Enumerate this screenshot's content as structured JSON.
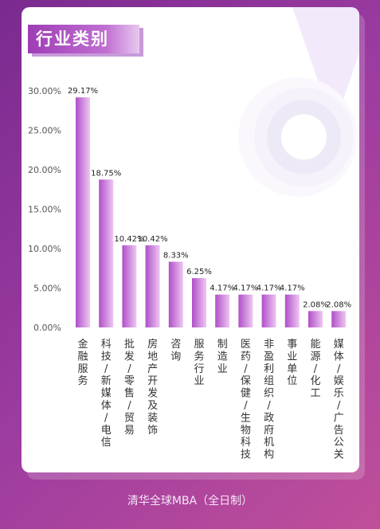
{
  "title": "行业类别",
  "footer": "清华全球MBA（全日制）",
  "colors": {
    "bar_dark": "#b04fc8",
    "bar_light": "#eec7f3",
    "title_dark": "#9e3db5",
    "title_light": "#e7c8ef"
  },
  "chart_data": {
    "type": "bar",
    "categories": [
      "金融服务",
      "科技/新媒体/电信",
      "批发/零售/贸易",
      "房地产开发及装饰",
      "咨询",
      "服务行业",
      "制造业",
      "医药/保健/生物科技",
      "非盈利组织/政府机构",
      "事业单位",
      "能源/化工",
      "媒体/娱乐/广告公关"
    ],
    "values": [
      29.17,
      18.75,
      10.42,
      10.42,
      8.33,
      6.25,
      4.17,
      4.17,
      4.17,
      4.17,
      2.08,
      2.08
    ],
    "value_labels": [
      "29.17%",
      "18.75%",
      "10.42%",
      "10.42%",
      "8.33%",
      "6.25%",
      "4.17%",
      "4.17%",
      "4.17%",
      "4.17%",
      "2.08%",
      "2.08%"
    ],
    "y_ticks": [
      "0.00%",
      "5.00%",
      "10.00%",
      "15.00%",
      "20.00%",
      "25.00%",
      "30.00%"
    ],
    "ylim": [
      0,
      30
    ],
    "grid": false,
    "legend": "none"
  }
}
